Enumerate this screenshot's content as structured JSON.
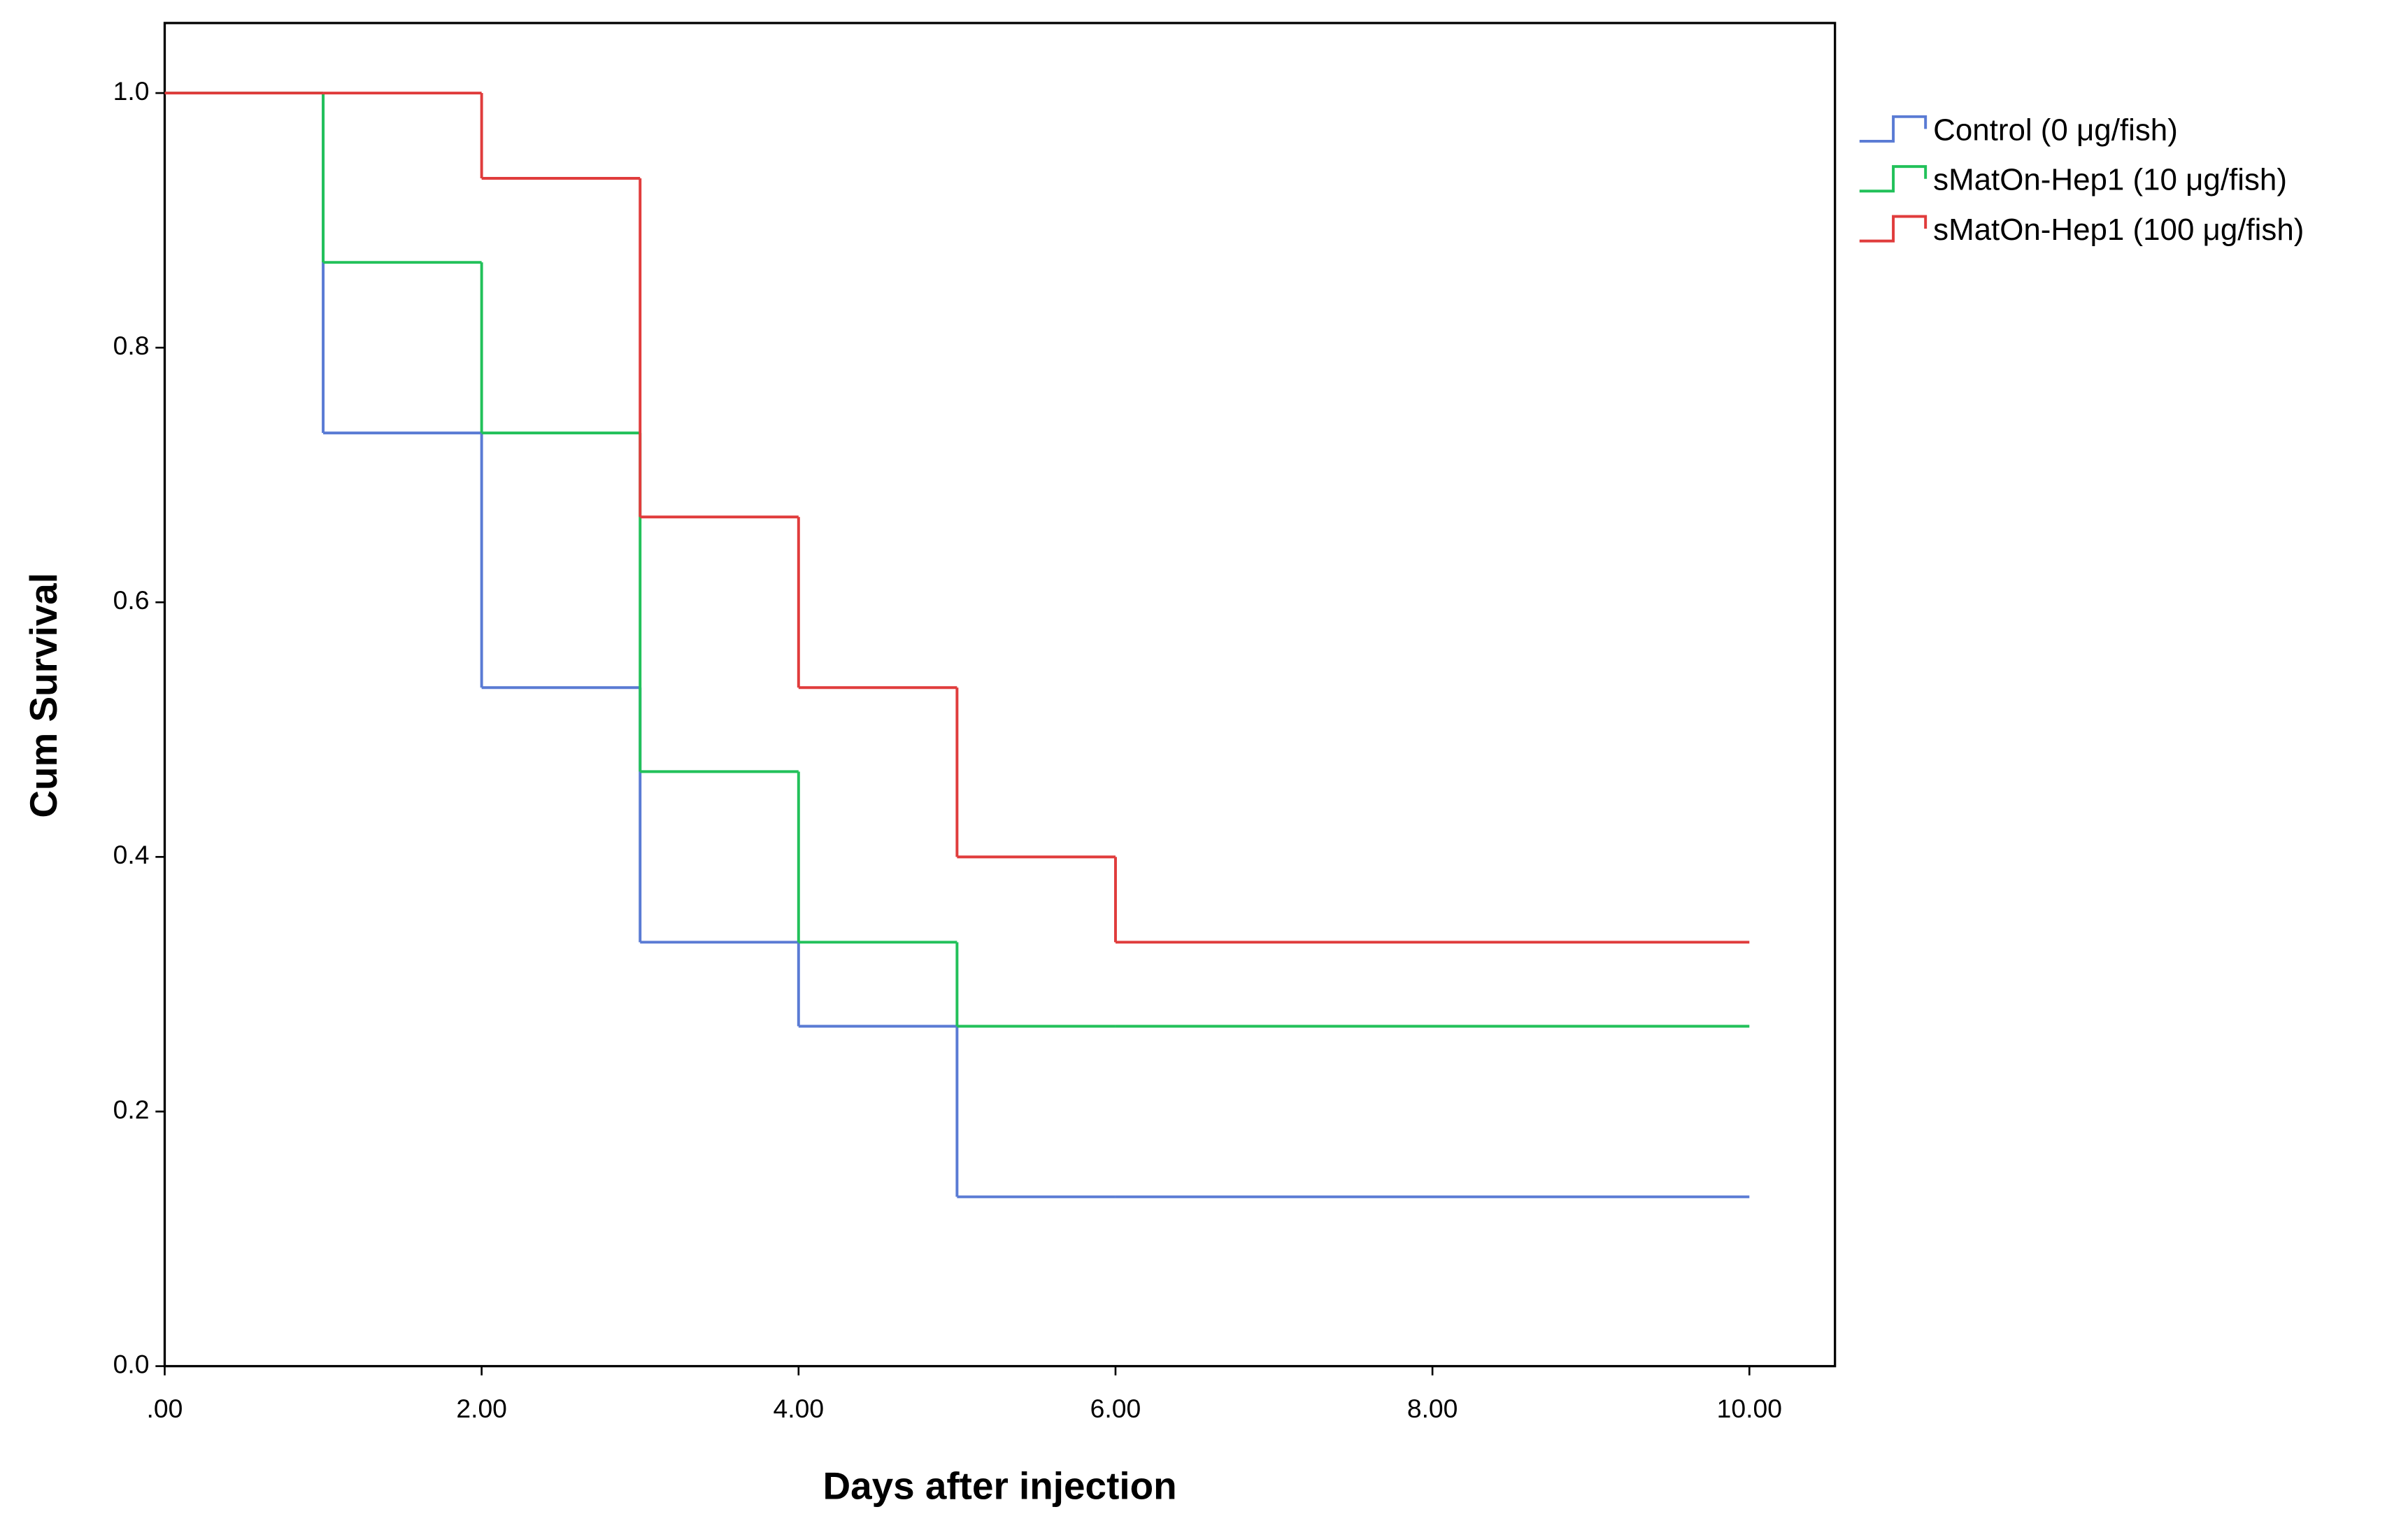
{
  "chart_data": {
    "type": "line",
    "drawstyle": "steps-post",
    "xlabel": "Days after injection",
    "ylabel": "Cum Survival",
    "x": [
      0,
      1,
      2,
      3,
      4,
      5,
      6,
      10
    ],
    "series": [
      {
        "name": "Control (0 μg/fish)",
        "color": "#5a7bd4",
        "values": [
          1.0,
          0.733,
          0.533,
          0.333,
          0.267,
          0.133,
          0.133,
          0.133
        ]
      },
      {
        "name": "sMatOn-Hep1 (10 μg/fish)",
        "color": "#22c15a",
        "values": [
          1.0,
          0.867,
          0.733,
          0.467,
          0.333,
          0.267,
          0.267,
          0.267
        ]
      },
      {
        "name": "sMatOn-Hep1 (100 μg/fish)",
        "color": "#e03c3c",
        "values": [
          1.0,
          1.0,
          0.933,
          0.667,
          0.533,
          0.4,
          0.333,
          0.333
        ]
      }
    ],
    "xlim": [
      0,
      10.54
    ],
    "ylim": [
      0,
      1.055
    ],
    "xticks": [
      {
        "value": 0,
        "label": ".00"
      },
      {
        "value": 2,
        "label": "2.00"
      },
      {
        "value": 4,
        "label": "4.00"
      },
      {
        "value": 6,
        "label": "6.00"
      },
      {
        "value": 8,
        "label": "8.00"
      },
      {
        "value": 10,
        "label": "10.00"
      }
    ],
    "yticks": [
      {
        "value": 0,
        "label": "0.0"
      },
      0.2,
      0.4,
      0.6,
      0.8,
      {
        "value": 1,
        "label": "1.0"
      }
    ],
    "grid": false,
    "legend": "outside-right"
  }
}
